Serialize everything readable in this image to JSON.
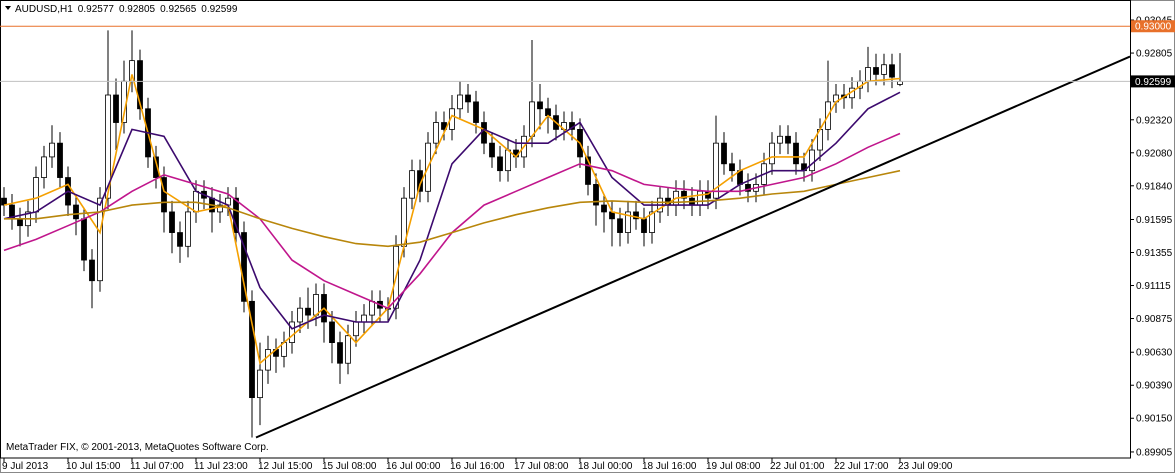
{
  "chart_data": {
    "type": "candlestick",
    "title": "AUDUSD,H1",
    "footer": "MetaTrader FIX, © 2001-2013, MetaQuotes Software Corp.",
    "ylim": [
      0.89861,
      0.93089
    ],
    "yticks": [
      0.93045,
      0.92805,
      {
        "value": 0.9232,
        "label": "0.92320"
      },
      {
        "value": 0.9208,
        "label": "0.92080"
      },
      {
        "value": 0.9184,
        "label": "0.91840"
      },
      0.91595,
      0.91355,
      0.91115,
      0.90875,
      {
        "value": 0.9063,
        "label": "0.90630"
      },
      {
        "value": 0.9039,
        "label": "0.90390"
      },
      {
        "value": 0.9015,
        "label": "0.90150"
      },
      0.89905
    ],
    "grid": false,
    "categories": [
      "9 Jul 2013",
      null,
      null,
      null,
      null,
      null,
      null,
      null,
      "10 Jul 15:00",
      null,
      null,
      null,
      null,
      null,
      null,
      null,
      "11 Jul 07:00",
      null,
      null,
      null,
      null,
      null,
      null,
      null,
      "11 Jul 23:00",
      null,
      null,
      null,
      null,
      null,
      null,
      null,
      "12 Jul 15:00",
      null,
      null,
      null,
      null,
      null,
      null,
      null,
      "15 Jul 08:00",
      null,
      null,
      null,
      null,
      null,
      null,
      null,
      "16 Jul 00:00",
      null,
      null,
      null,
      null,
      null,
      null,
      null,
      "16 Jul 16:00",
      null,
      null,
      null,
      null,
      null,
      null,
      null,
      "17 Jul 08:00",
      null,
      null,
      null,
      null,
      null,
      null,
      null,
      "18 Jul 00:00",
      null,
      null,
      null,
      null,
      null,
      null,
      null,
      "18 Jul 16:00",
      null,
      null,
      null,
      null,
      null,
      null,
      null,
      "19 Jul 08:00",
      null,
      null,
      null,
      null,
      null,
      null,
      null,
      "22 Jul 01:00",
      null,
      null,
      null,
      null,
      null,
      null,
      null,
      "22 Jul 17:00",
      null,
      null,
      null,
      null,
      null,
      null,
      null,
      "23 Jul 09:00"
    ],
    "ohlc": [
      [
        0.9175,
        0.9183,
        0.9162,
        0.917
      ],
      [
        0.917,
        0.9178,
        0.9152,
        0.916
      ],
      [
        0.916,
        0.9168,
        0.914,
        0.9155
      ],
      [
        0.9155,
        0.9173,
        0.9147,
        0.9165
      ],
      [
        0.9165,
        0.9198,
        0.9157,
        0.919
      ],
      [
        0.919,
        0.9213,
        0.9182,
        0.9205
      ],
      [
        0.9205,
        0.9228,
        0.9197,
        0.9215
      ],
      [
        0.9215,
        0.9223,
        0.9182,
        0.919
      ],
      [
        0.919,
        0.9198,
        0.9162,
        0.917
      ],
      [
        0.917,
        0.9178,
        0.9148,
        0.916
      ],
      [
        0.916,
        0.9168,
        0.9122,
        0.913
      ],
      [
        0.913,
        0.9138,
        0.9095,
        0.9115
      ],
      [
        0.9115,
        0.9183,
        0.9107,
        0.9175
      ],
      [
        0.9175,
        0.9297,
        0.9167,
        0.925
      ],
      [
        0.925,
        0.9262,
        0.921,
        0.923
      ],
      [
        0.923,
        0.9275,
        0.9222,
        0.926
      ],
      [
        0.926,
        0.9297,
        0.9252,
        0.9275
      ],
      [
        0.9275,
        0.9283,
        0.9232,
        0.924
      ],
      [
        0.924,
        0.9248,
        0.9197,
        0.9205
      ],
      [
        0.9205,
        0.9213,
        0.9182,
        0.919
      ],
      [
        0.919,
        0.9198,
        0.915,
        0.9165
      ],
      [
        0.9165,
        0.9173,
        0.9135,
        0.915
      ],
      [
        0.915,
        0.9158,
        0.9128,
        0.914
      ],
      [
        0.914,
        0.9173,
        0.9132,
        0.9165
      ],
      [
        0.9165,
        0.9188,
        0.9157,
        0.918
      ],
      [
        0.918,
        0.9188,
        0.9167,
        0.9175
      ],
      [
        0.9175,
        0.9183,
        0.915,
        0.9165
      ],
      [
        0.9165,
        0.9178,
        0.9157,
        0.917
      ],
      [
        0.917,
        0.9183,
        0.9162,
        0.9175
      ],
      [
        0.9175,
        0.9183,
        0.9142,
        0.915
      ],
      [
        0.915,
        0.9158,
        0.9092,
        0.91
      ],
      [
        0.91,
        0.9108,
        0.9001,
        0.903
      ],
      [
        0.903,
        0.907,
        0.901,
        0.905
      ],
      [
        0.905,
        0.9075,
        0.904,
        0.9065
      ],
      [
        0.9065,
        0.9073,
        0.9048,
        0.906
      ],
      [
        0.906,
        0.9078,
        0.9052,
        0.907
      ],
      [
        0.907,
        0.9093,
        0.9062,
        0.9085
      ],
      [
        0.9085,
        0.9103,
        0.9077,
        0.9095
      ],
      [
        0.9095,
        0.911,
        0.908,
        0.909
      ],
      [
        0.909,
        0.9113,
        0.9082,
        0.9105
      ],
      [
        0.9105,
        0.9113,
        0.907,
        0.9085
      ],
      [
        0.9085,
        0.9093,
        0.9055,
        0.907
      ],
      [
        0.907,
        0.9078,
        0.904,
        0.9055
      ],
      [
        0.9055,
        0.9083,
        0.9047,
        0.9075
      ],
      [
        0.9075,
        0.9093,
        0.9067,
        0.9085
      ],
      [
        0.9085,
        0.9098,
        0.9077,
        0.909
      ],
      [
        0.909,
        0.9108,
        0.9082,
        0.91
      ],
      [
        0.91,
        0.9108,
        0.9085,
        0.9095
      ],
      [
        0.9095,
        0.9103,
        0.9085,
        0.9095
      ],
      [
        0.9095,
        0.9148,
        0.9087,
        0.914
      ],
      [
        0.914,
        0.9183,
        0.9132,
        0.9175
      ],
      [
        0.9175,
        0.9203,
        0.9167,
        0.9195
      ],
      [
        0.9195,
        0.9203,
        0.9172,
        0.918
      ],
      [
        0.918,
        0.9223,
        0.9172,
        0.9215
      ],
      [
        0.9215,
        0.9238,
        0.9207,
        0.923
      ],
      [
        0.923,
        0.9238,
        0.9217,
        0.9225
      ],
      [
        0.9225,
        0.925,
        0.9217,
        0.924
      ],
      [
        0.924,
        0.926,
        0.9232,
        0.925
      ],
      [
        0.925,
        0.9258,
        0.9237,
        0.9245
      ],
      [
        0.9245,
        0.9253,
        0.9222,
        0.923
      ],
      [
        0.923,
        0.9238,
        0.9207,
        0.9215
      ],
      [
        0.9215,
        0.9223,
        0.9197,
        0.9205
      ],
      [
        0.9205,
        0.9213,
        0.9187,
        0.9195
      ],
      [
        0.9195,
        0.9218,
        0.9187,
        0.921
      ],
      [
        0.921,
        0.9218,
        0.9197,
        0.9205
      ],
      [
        0.9205,
        0.9228,
        0.9197,
        0.922
      ],
      [
        0.922,
        0.929,
        0.9212,
        0.9245
      ],
      [
        0.9245,
        0.9258,
        0.9225,
        0.924
      ],
      [
        0.924,
        0.9248,
        0.9222,
        0.9235
      ],
      [
        0.9235,
        0.9243,
        0.9217,
        0.9225
      ],
      [
        0.9225,
        0.9238,
        0.9217,
        0.923
      ],
      [
        0.923,
        0.9238,
        0.9217,
        0.9225
      ],
      [
        0.9225,
        0.9233,
        0.9197,
        0.9205
      ],
      [
        0.9205,
        0.9213,
        0.9177,
        0.9185
      ],
      [
        0.9185,
        0.9193,
        0.9155,
        0.917
      ],
      [
        0.917,
        0.9178,
        0.915,
        0.9165
      ],
      [
        0.9165,
        0.9173,
        0.914,
        0.916
      ],
      [
        0.916,
        0.9168,
        0.914,
        0.915
      ],
      [
        0.915,
        0.9173,
        0.9142,
        0.9165
      ],
      [
        0.9165,
        0.9173,
        0.9152,
        0.916
      ],
      [
        0.916,
        0.9168,
        0.914,
        0.915
      ],
      [
        0.915,
        0.9173,
        0.9142,
        0.9165
      ],
      [
        0.9165,
        0.9183,
        0.9157,
        0.9175
      ],
      [
        0.9175,
        0.9183,
        0.9162,
        0.917
      ],
      [
        0.917,
        0.9188,
        0.9162,
        0.918
      ],
      [
        0.918,
        0.9188,
        0.9167,
        0.9175
      ],
      [
        0.9175,
        0.9183,
        0.9162,
        0.917
      ],
      [
        0.917,
        0.9188,
        0.9162,
        0.918
      ],
      [
        0.918,
        0.9188,
        0.9167,
        0.9175
      ],
      [
        0.9175,
        0.9235,
        0.9167,
        0.9215
      ],
      [
        0.9215,
        0.9223,
        0.9192,
        0.92
      ],
      [
        0.92,
        0.9208,
        0.9187,
        0.9195
      ],
      [
        0.9195,
        0.9203,
        0.9177,
        0.9185
      ],
      [
        0.9185,
        0.9193,
        0.9172,
        0.918
      ],
      [
        0.918,
        0.9193,
        0.9172,
        0.9185
      ],
      [
        0.9185,
        0.9208,
        0.9177,
        0.92
      ],
      [
        0.92,
        0.9223,
        0.9192,
        0.9215
      ],
      [
        0.9215,
        0.9228,
        0.9207,
        0.922
      ],
      [
        0.922,
        0.9228,
        0.9207,
        0.9215
      ],
      [
        0.9215,
        0.9223,
        0.9192,
        0.92
      ],
      [
        0.92,
        0.9208,
        0.9187,
        0.9195
      ],
      [
        0.9195,
        0.9218,
        0.9187,
        0.921
      ],
      [
        0.921,
        0.9233,
        0.9202,
        0.9225
      ],
      [
        0.9225,
        0.9275,
        0.9217,
        0.9245
      ],
      [
        0.9245,
        0.9258,
        0.9237,
        0.925
      ],
      [
        0.925,
        0.9258,
        0.924,
        0.9248
      ],
      [
        0.9248,
        0.9263,
        0.924,
        0.9255
      ],
      [
        0.9255,
        0.9268,
        0.9247,
        0.926
      ],
      [
        0.926,
        0.9285,
        0.9252,
        0.927
      ],
      [
        0.927,
        0.928,
        0.9257,
        0.9265
      ],
      [
        0.9265,
        0.928,
        0.9257,
        0.9272
      ],
      [
        0.9272,
        0.928,
        0.9255,
        0.9263
      ],
      [
        0.92577,
        0.92805,
        0.92565,
        0.92599
      ]
    ],
    "series": [
      {
        "color": "#f5a000",
        "x": [
          0,
          4,
          8,
          12,
          16,
          20,
          24,
          28,
          32,
          36,
          40,
          44,
          48,
          52,
          56,
          60,
          64,
          68,
          72,
          76,
          80,
          84,
          88,
          92,
          96,
          100,
          104,
          108,
          112
        ],
        "values": [
          0.917,
          0.9175,
          0.9185,
          0.915,
          0.9265,
          0.918,
          0.9165,
          0.917,
          0.9055,
          0.9075,
          0.9095,
          0.907,
          0.9095,
          0.9185,
          0.9235,
          0.9225,
          0.9205,
          0.9235,
          0.9215,
          0.9165,
          0.916,
          0.9175,
          0.9178,
          0.9195,
          0.9205,
          0.9205,
          0.9245,
          0.926,
          0.9262
        ]
      },
      {
        "color": "#3c0a6e",
        "x": [
          0,
          4,
          8,
          12,
          16,
          20,
          24,
          28,
          32,
          36,
          40,
          44,
          48,
          52,
          56,
          60,
          64,
          68,
          72,
          76,
          80,
          84,
          88,
          92,
          96,
          100,
          104,
          108,
          112
        ],
        "values": [
          0.916,
          0.9165,
          0.918,
          0.917,
          0.9225,
          0.922,
          0.918,
          0.917,
          0.911,
          0.908,
          0.909,
          0.9085,
          0.9085,
          0.913,
          0.92,
          0.9225,
          0.9215,
          0.9215,
          0.923,
          0.919,
          0.917,
          0.917,
          0.917,
          0.9185,
          0.9195,
          0.9195,
          0.9215,
          0.924,
          0.9252
        ]
      },
      {
        "color": "#c0168c",
        "x": [
          0,
          4,
          8,
          12,
          16,
          20,
          24,
          28,
          32,
          36,
          40,
          44,
          48,
          52,
          56,
          60,
          64,
          68,
          72,
          76,
          80,
          84,
          88,
          92,
          96,
          100,
          104,
          108,
          112
        ],
        "values": [
          0.9137,
          0.9145,
          0.9155,
          0.9165,
          0.918,
          0.9192,
          0.9185,
          0.9178,
          0.916,
          0.913,
          0.9115,
          0.9105,
          0.9095,
          0.912,
          0.915,
          0.917,
          0.918,
          0.919,
          0.92,
          0.9195,
          0.9185,
          0.9182,
          0.918,
          0.918,
          0.9185,
          0.919,
          0.92,
          0.9212,
          0.9222
        ]
      },
      {
        "color": "#b8860b",
        "x": [
          0,
          4,
          8,
          12,
          16,
          20,
          24,
          28,
          32,
          36,
          40,
          44,
          48,
          52,
          56,
          60,
          64,
          68,
          72,
          76,
          80,
          84,
          88,
          92,
          96,
          100,
          104,
          108,
          112
        ],
        "values": [
          0.916,
          0.916,
          0.9163,
          0.9165,
          0.917,
          0.9172,
          0.9172,
          0.9168,
          0.916,
          0.9153,
          0.9147,
          0.9142,
          0.914,
          0.9143,
          0.915,
          0.9157,
          0.9163,
          0.9168,
          0.9172,
          0.9173,
          0.9172,
          0.9172,
          0.9173,
          0.9175,
          0.9178,
          0.918,
          0.9185,
          0.919,
          0.9195
        ]
      }
    ],
    "trendline": {
      "color": "#000000",
      "x": [
        31.5,
        140.75
      ],
      "values": [
        0.9001,
        0.9278
      ]
    },
    "levels": [
      {
        "value": 0.93,
        "label": "0.93000",
        "color": "#e8702a"
      }
    ],
    "bull_color": "#ffffff",
    "bear_color": "#000000"
  }
}
